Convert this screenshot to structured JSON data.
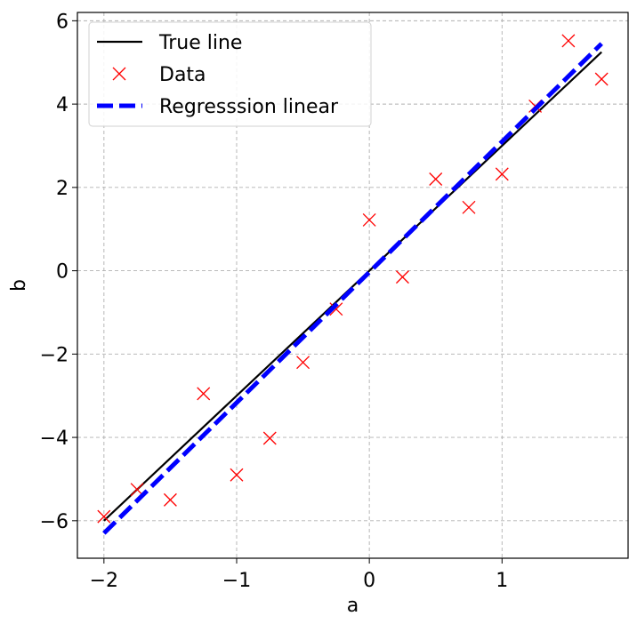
{
  "chart_data": {
    "type": "line",
    "xlabel": "a",
    "ylabel": "b",
    "xlim": [
      -2.2,
      1.95
    ],
    "ylim": [
      -6.9,
      6.2
    ],
    "xticks": [
      -2,
      -1,
      0,
      1
    ],
    "xtick_labels": [
      "−2",
      "−1",
      "0",
      "1"
    ],
    "yticks": [
      -6,
      -4,
      -2,
      0,
      2,
      4,
      6
    ],
    "ytick_labels": [
      "−6",
      "−4",
      "−2",
      "0",
      "2",
      "4",
      "6"
    ],
    "grid": true,
    "legend_position": "top-left",
    "series": [
      {
        "name": "True line",
        "style": "solid",
        "color": "#000000",
        "x": [
          -2.0,
          1.75
        ],
        "y": [
          -6.0,
          5.25
        ]
      },
      {
        "name": "Data",
        "style": "marker-x",
        "color": "#ff0000",
        "x": [
          -2.0,
          -1.75,
          -1.5,
          -1.25,
          -1.0,
          -0.75,
          -0.5,
          -0.25,
          0.0,
          0.25,
          0.5,
          0.75,
          1.0,
          1.25,
          1.5,
          1.75
        ],
        "y": [
          -5.9,
          -5.25,
          -5.5,
          -2.95,
          -4.9,
          -4.02,
          -2.2,
          -0.92,
          1.22,
          -0.15,
          2.2,
          1.52,
          2.32,
          3.95,
          5.52,
          4.6
        ]
      },
      {
        "name": "Regresssion linear",
        "style": "dashed",
        "color": "#0000ff",
        "x": [
          -2.0,
          1.75
        ],
        "y": [
          -6.3,
          5.45
        ]
      }
    ]
  }
}
